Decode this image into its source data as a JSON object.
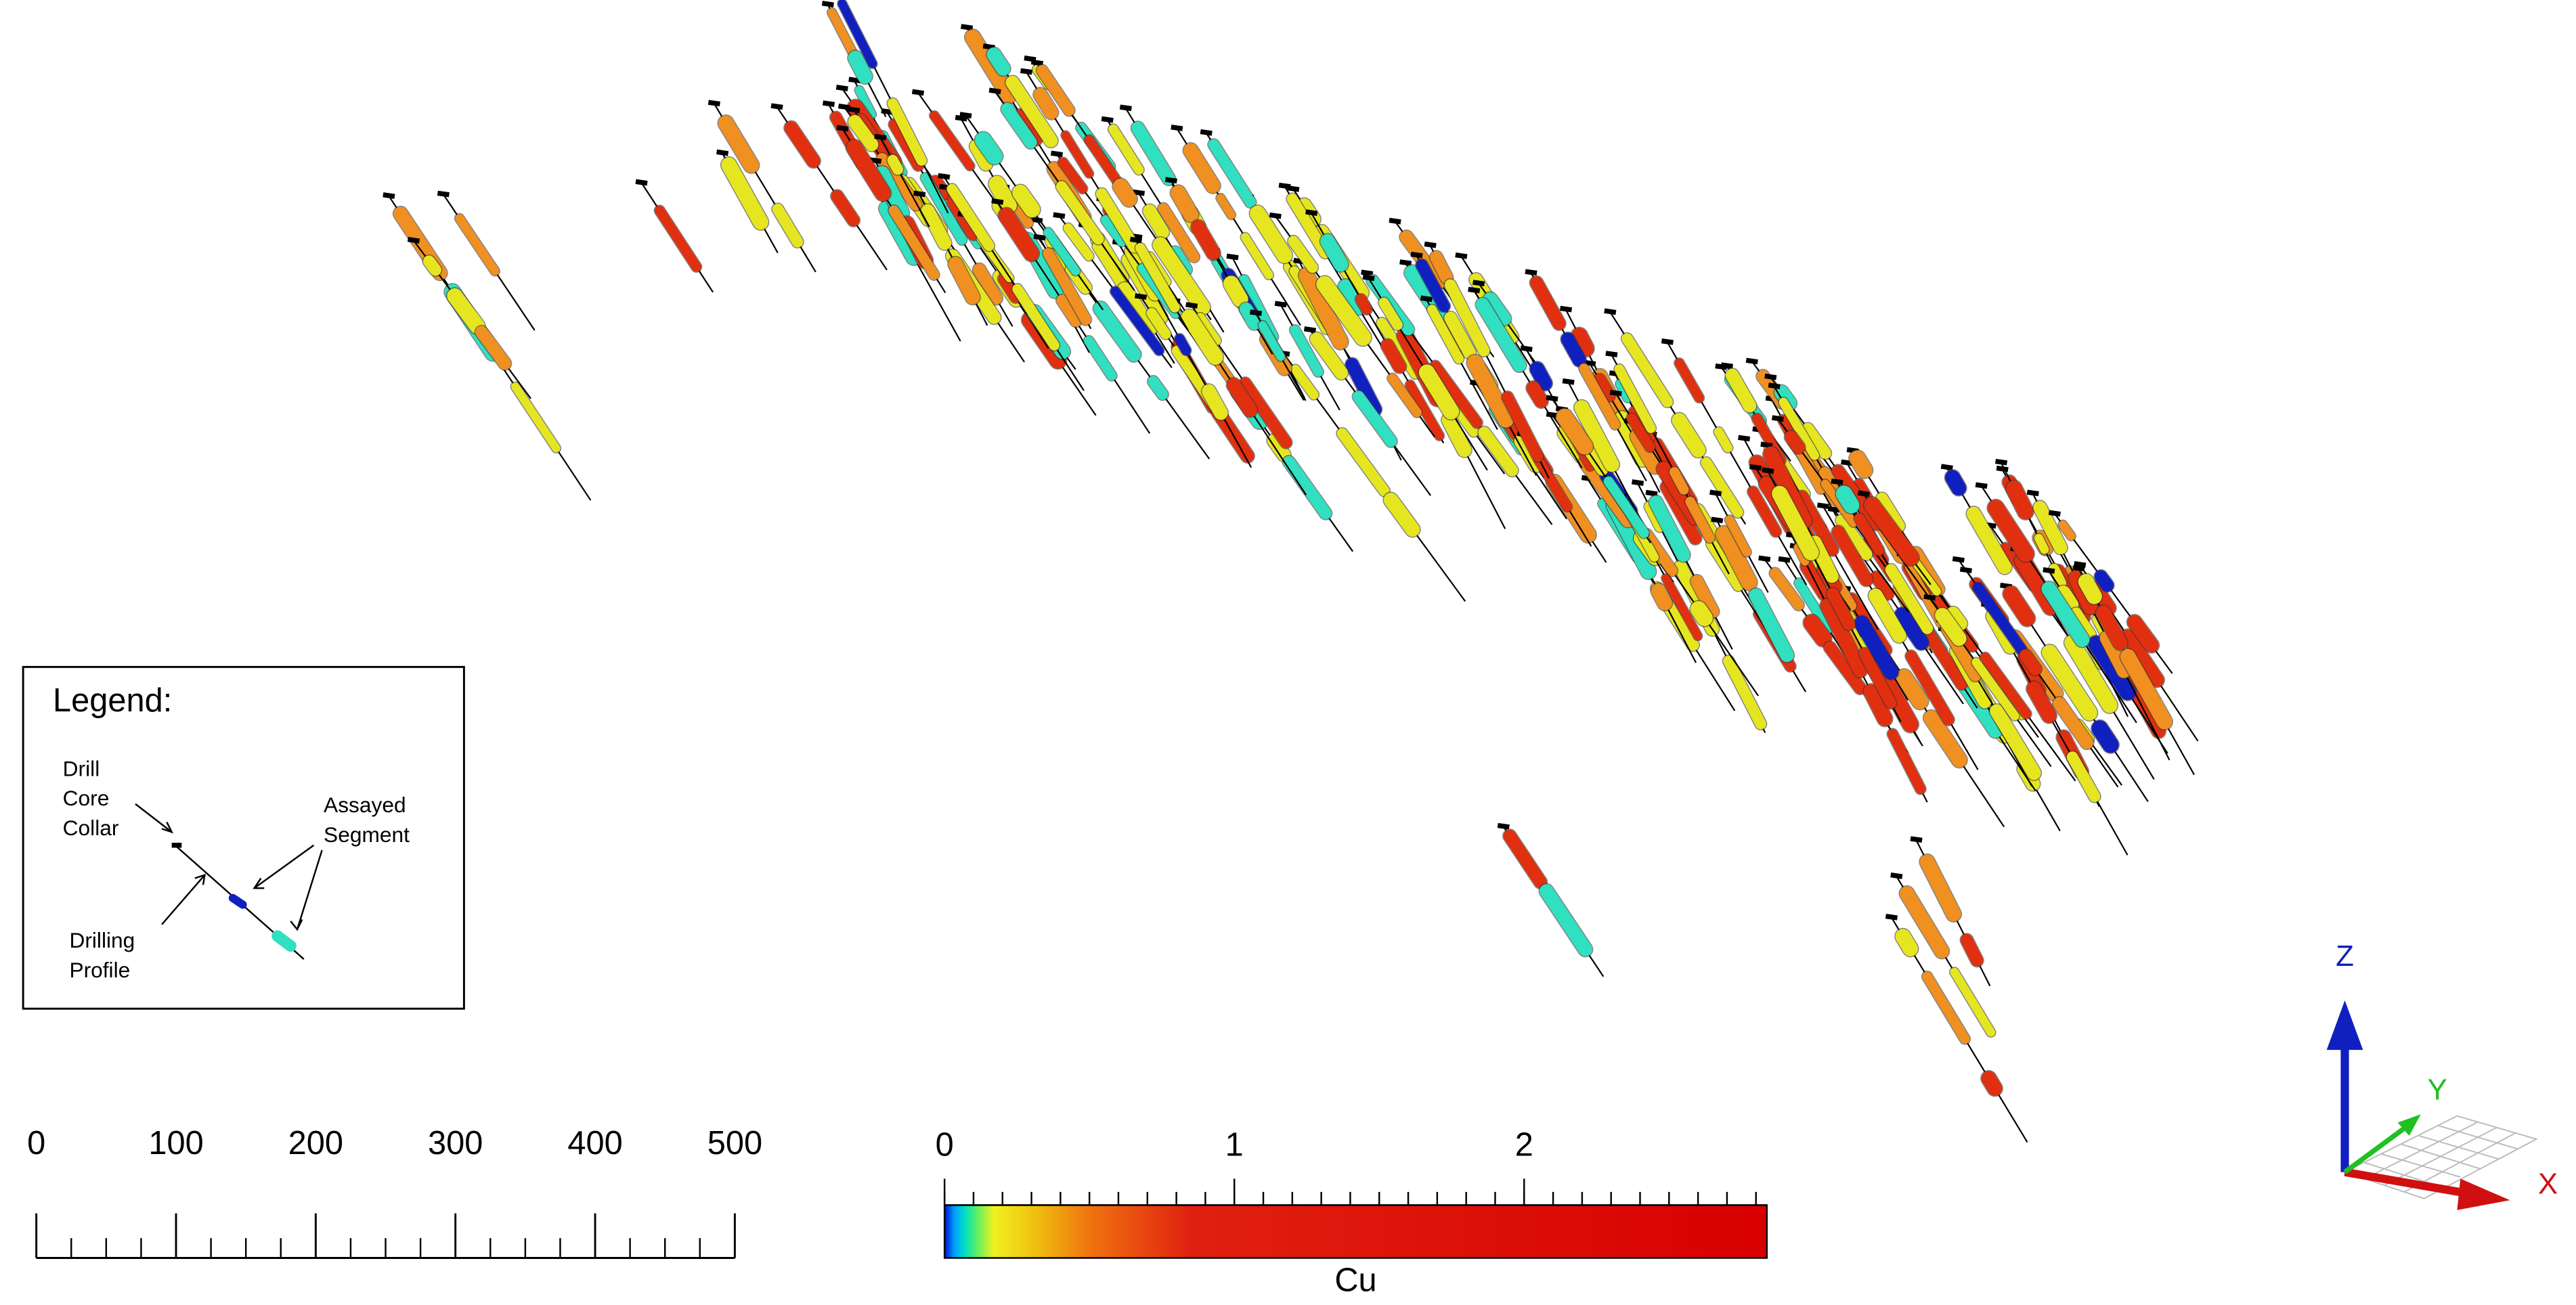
{
  "legend": {
    "title": "Legend:",
    "collar_label": [
      "Drill",
      "Core",
      "Collar"
    ],
    "segment_label": [
      "Assayed",
      "Segment"
    ],
    "profile_label": [
      "Drilling",
      "Profile"
    ]
  },
  "scale_bar": {
    "ticks": [
      0,
      100,
      200,
      300,
      400,
      500
    ]
  },
  "color_bar": {
    "ticks": [
      0,
      1,
      2
    ],
    "label": "Cu"
  },
  "axes": {
    "x": "X",
    "y": "Y",
    "z": "Z"
  }
}
